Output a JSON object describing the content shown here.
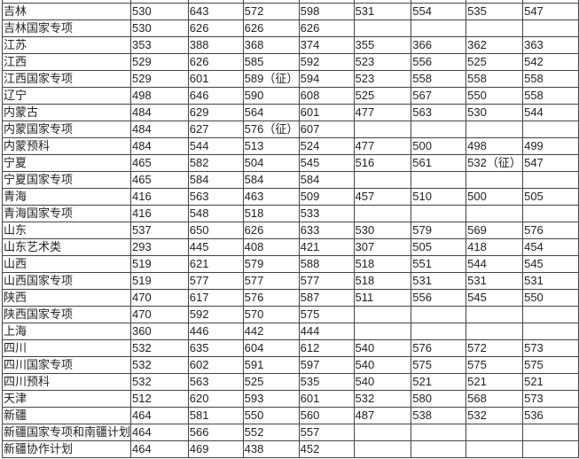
{
  "rows": [
    {
      "province": "吉林",
      "scores": [
        "530",
        "643",
        "572",
        "598",
        "531",
        "554",
        "535",
        "547"
      ]
    },
    {
      "province": "吉林国家专项",
      "scores": [
        "530",
        "626",
        "626",
        "626",
        "",
        "",
        "",
        ""
      ]
    },
    {
      "province": "江苏",
      "scores": [
        "353",
        "388",
        "368",
        "374",
        "355",
        "366",
        "362",
        "363"
      ]
    },
    {
      "province": "江西",
      "scores": [
        "529",
        "626",
        "585",
        "592",
        "523",
        "556",
        "525",
        "542"
      ]
    },
    {
      "province": "江西国家专项",
      "scores": [
        "529",
        "601",
        "589（征）",
        "594",
        "523",
        "558",
        "558",
        "558"
      ]
    },
    {
      "province": "辽宁",
      "scores": [
        "498",
        "646",
        "590",
        "608",
        "525",
        "567",
        "550",
        "558"
      ]
    },
    {
      "province": "内蒙古",
      "scores": [
        "484",
        "629",
        "564",
        "601",
        "477",
        "563",
        "530",
        "544"
      ]
    },
    {
      "province": "内蒙国家专项",
      "scores": [
        "484",
        "627",
        "576（征）",
        "607",
        "",
        "",
        "",
        ""
      ]
    },
    {
      "province": "内蒙预科",
      "scores": [
        "484",
        "544",
        "513",
        "524",
        "477",
        "500",
        "498",
        "499"
      ]
    },
    {
      "province": "宁夏",
      "scores": [
        "465",
        "582",
        "504",
        "545",
        "516",
        "561",
        "532（征）",
        "547"
      ]
    },
    {
      "province": "宁夏国家专项",
      "scores": [
        "465",
        "584",
        "584",
        "584",
        "",
        "",
        "",
        ""
      ]
    },
    {
      "province": "青海",
      "scores": [
        "416",
        "563",
        "463",
        "509",
        "457",
        "510",
        "500",
        "505"
      ]
    },
    {
      "province": "青海国家专项",
      "scores": [
        "416",
        "548",
        "518",
        "533",
        "",
        "",
        "",
        ""
      ]
    },
    {
      "province": "山东",
      "scores": [
        "537",
        "650",
        "626",
        "633",
        "530",
        "579",
        "569",
        "576"
      ]
    },
    {
      "province": "山东艺术类",
      "scores": [
        "293",
        "445",
        "408",
        "421",
        "307",
        "505",
        "418",
        "454"
      ]
    },
    {
      "province": "山西",
      "scores": [
        "519",
        "621",
        "579",
        "588",
        "518",
        "551",
        "544",
        "545"
      ]
    },
    {
      "province": "山西国家专项",
      "scores": [
        "519",
        "577",
        "577",
        "577",
        "518",
        "531",
        "531",
        "531"
      ]
    },
    {
      "province": "陕西",
      "scores": [
        "470",
        "617",
        "576",
        "587",
        "511",
        "556",
        "545",
        "550"
      ]
    },
    {
      "province": "陕西国家专项",
      "scores": [
        "470",
        "592",
        "570",
        "575",
        "",
        "",
        "",
        ""
      ]
    },
    {
      "province": "上海",
      "scores": [
        "360",
        "446",
        "442",
        "444",
        "",
        "",
        "",
        ""
      ]
    },
    {
      "province": "四川",
      "scores": [
        "532",
        "635",
        "604",
        "612",
        "540",
        "576",
        "572",
        "573"
      ]
    },
    {
      "province": "四川国家专项",
      "scores": [
        "532",
        "602",
        "591",
        "597",
        "540",
        "575",
        "575",
        "575"
      ]
    },
    {
      "province": "四川预科",
      "scores": [
        "532",
        "563",
        "525",
        "535",
        "540",
        "521",
        "521",
        "521"
      ]
    },
    {
      "province": "天津",
      "scores": [
        "512",
        "620",
        "593",
        "601",
        "532",
        "580",
        "568",
        "573"
      ]
    },
    {
      "province": "新疆",
      "scores": [
        "464",
        "581",
        "550",
        "560",
        "487",
        "538",
        "532",
        "536"
      ]
    },
    {
      "province": "新疆国家专项和南疆计划",
      "scores": [
        "464",
        "566",
        "552",
        "557",
        "",
        "",
        "",
        ""
      ]
    },
    {
      "province": "新疆协作计划",
      "scores": [
        "464",
        "469",
        "438",
        "452",
        "",
        "",
        "",
        ""
      ]
    }
  ]
}
